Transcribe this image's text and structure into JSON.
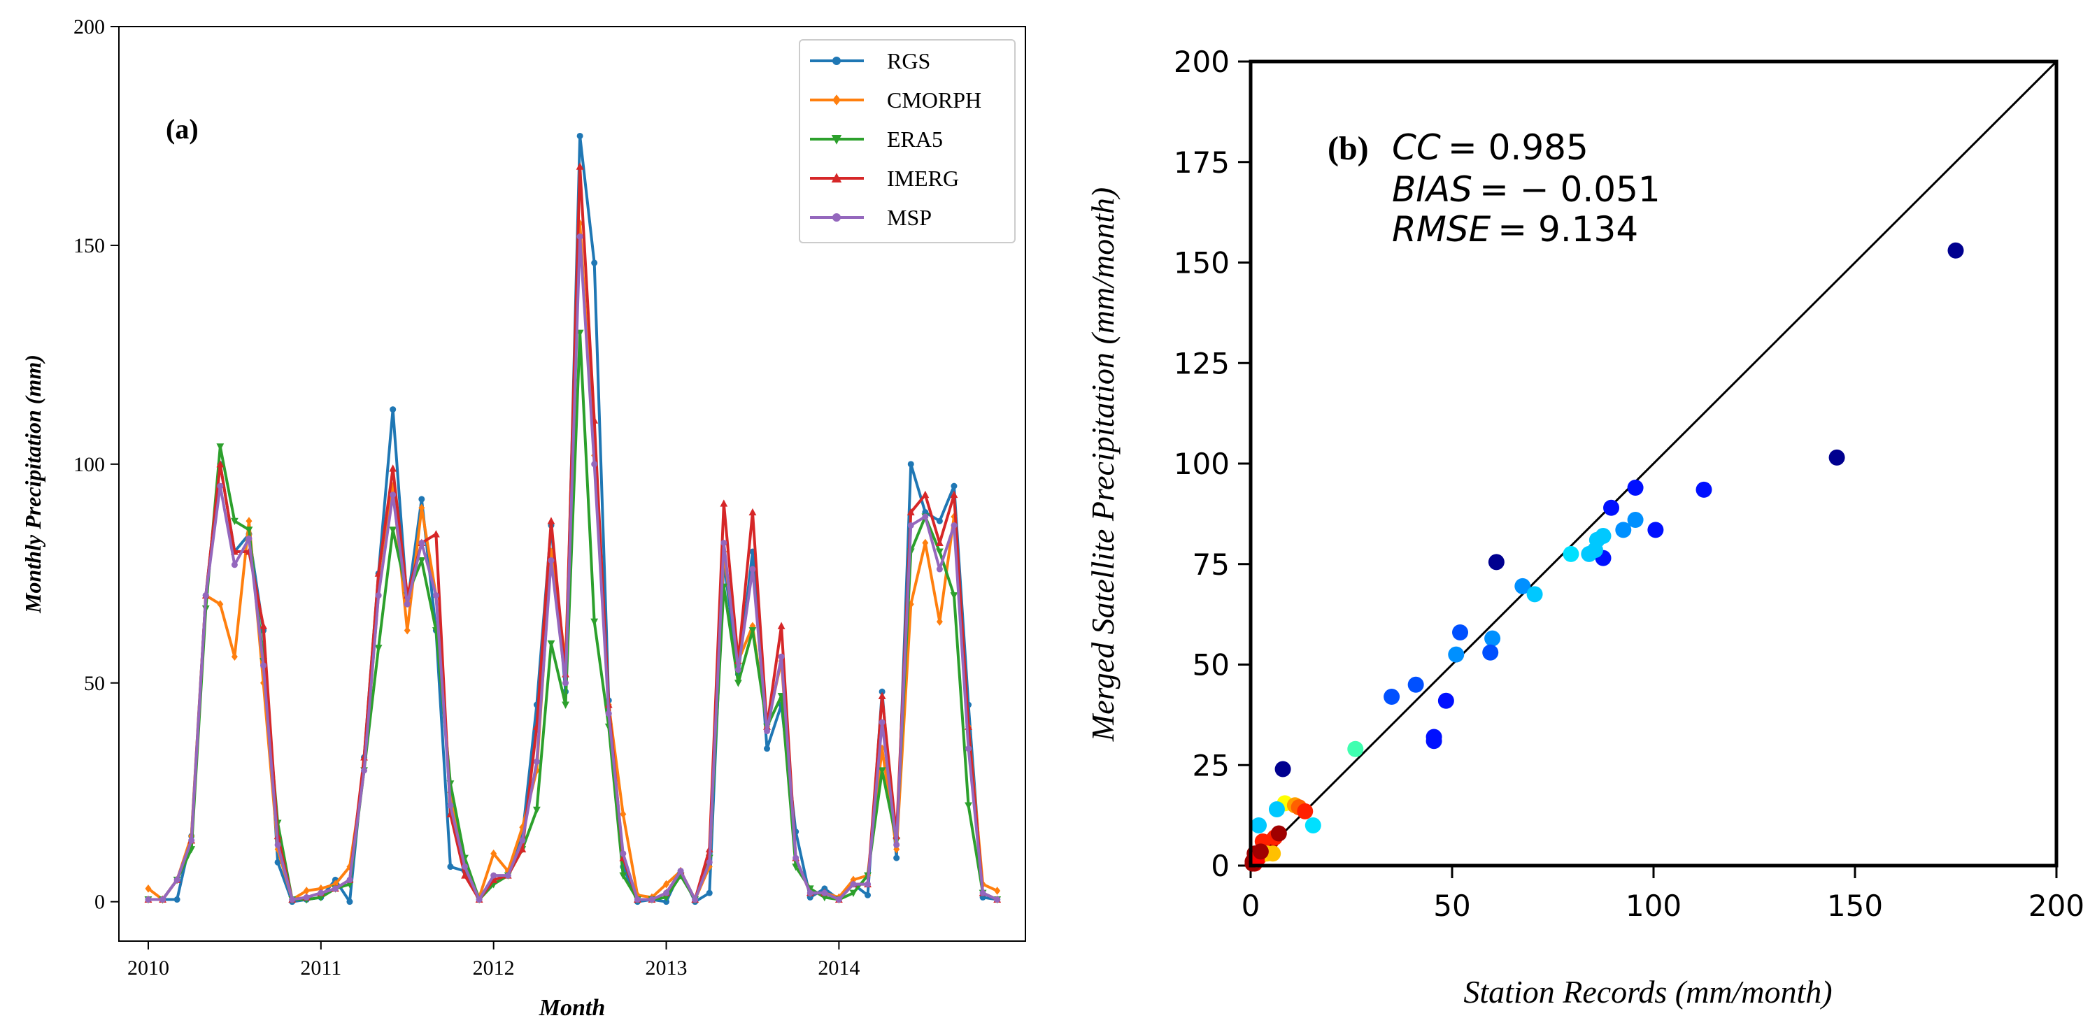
{
  "chart_data": [
    {
      "id": "a",
      "type": "line",
      "panel_label": "(a)",
      "xlabel": "Month",
      "ylabel": "Monthly Precipitation (mm)",
      "xlim": [
        2009.83,
        2015.08
      ],
      "ylim": [
        -9,
        200
      ],
      "xticks": [
        2010,
        2011,
        2012,
        2013,
        2014
      ],
      "xtick_labels": [
        "2010",
        "2011",
        "2012",
        "2013",
        "2014"
      ],
      "yticks": [
        0,
        50,
        100,
        150,
        200
      ],
      "ytick_labels": [
        "0",
        "50",
        "100",
        "150",
        "200"
      ],
      "legend_position": "top-right",
      "x_start_year": 2010,
      "series": [
        {
          "name": "RGS",
          "color": "#1f77b4",
          "marker": "circle",
          "values": [
            0.5,
            0.5,
            0.5,
            15,
            70,
            100,
            80,
            84,
            62,
            9,
            0,
            0.5,
            1,
            5,
            0,
            33,
            75,
            112.5,
            68,
            92,
            62,
            8,
            7,
            0.5,
            5,
            6,
            15,
            45,
            86,
            48,
            175,
            146,
            46,
            8,
            0,
            0.5,
            0,
            7,
            0,
            2,
            78,
            52,
            80,
            35,
            45,
            16,
            1,
            3,
            0.5,
            4,
            1.5,
            48,
            10,
            100,
            89,
            87,
            95,
            45,
            1,
            0.5
          ]
        },
        {
          "name": "CMORPH",
          "color": "#ff7f0e",
          "marker": "diamond",
          "values": [
            3,
            0.5,
            5,
            15,
            70,
            68,
            56,
            87,
            50,
            12,
            0.5,
            2.5,
            3,
            4,
            8,
            30,
            70,
            95,
            62,
            90,
            70,
            25,
            8,
            1,
            11,
            7,
            17,
            30,
            80,
            55,
            155,
            102,
            45,
            20,
            1.5,
            1,
            4,
            7,
            0.5,
            8,
            80,
            55,
            63,
            40,
            55,
            10,
            2,
            2,
            1,
            5,
            6,
            35,
            12,
            68,
            82,
            64,
            88,
            40,
            4,
            2.5
          ]
        },
        {
          "name": "ERA5",
          "color": "#2ca02c",
          "marker": "triangle-down",
          "values": [
            0.5,
            0.5,
            5,
            12,
            67,
            104,
            87,
            85,
            55,
            18,
            0.5,
            0.5,
            1,
            3,
            4,
            30,
            58,
            85,
            70,
            78,
            62,
            27,
            10,
            0.5,
            4,
            6,
            12,
            21,
            59,
            45,
            130,
            64,
            40,
            6,
            0.5,
            0.5,
            1,
            6,
            0.5,
            10,
            72,
            50,
            62,
            40,
            47,
            8,
            3,
            1,
            0.5,
            2,
            6,
            30,
            14,
            80,
            88,
            80,
            70,
            22,
            2,
            0.5
          ]
        },
        {
          "name": "IMERG",
          "color": "#d62728",
          "marker": "triangle-up",
          "values": [
            0.5,
            0.5,
            5,
            14,
            70,
            100,
            80,
            80,
            63,
            15,
            0.5,
            1,
            2,
            3,
            5,
            33,
            75,
            99,
            70,
            82,
            84,
            20,
            6,
            0.5,
            5,
            6,
            12,
            40,
            87,
            52,
            168,
            110,
            45,
            10,
            0.5,
            0.5,
            2,
            7,
            0.5,
            12,
            91,
            55,
            89,
            40,
            63,
            10,
            2,
            2,
            0.5,
            4,
            4,
            47,
            15,
            89,
            93,
            82,
            93,
            40,
            2,
            0.5
          ]
        },
        {
          "name": "MSP",
          "color": "#9467bd",
          "marker": "circle",
          "values": [
            0.5,
            0.5,
            5,
            14,
            70,
            95,
            77,
            83,
            54,
            13,
            0.5,
            1,
            2,
            3,
            5,
            30,
            70,
            93,
            68,
            82,
            70,
            22,
            8,
            0.5,
            6,
            6,
            14,
            32,
            78,
            50,
            152,
            100,
            43,
            11,
            0.5,
            0.5,
            2,
            7,
            0.5,
            9,
            82,
            53,
            76,
            39,
            56,
            10,
            2,
            2,
            0.5,
            4,
            4,
            41,
            13,
            86,
            88,
            76,
            86,
            35,
            2,
            0.5
          ]
        }
      ]
    },
    {
      "id": "b",
      "type": "scatter",
      "panel_label": "(b)",
      "xlabel": "Station Records (mm/month)",
      "ylabel": "Merged Satellite Precipitation (mm/month)",
      "xlim": [
        0,
        200
      ],
      "ylim": [
        0,
        200
      ],
      "xticks": [
        0,
        50,
        100,
        150,
        200
      ],
      "xtick_labels": [
        "0",
        "50",
        "100",
        "150",
        "200"
      ],
      "yticks": [
        0,
        25,
        50,
        75,
        100,
        125,
        150,
        175,
        200
      ],
      "ytick_labels": [
        "0",
        "25",
        "50",
        "75",
        "100",
        "125",
        "150",
        "175",
        "200"
      ],
      "reference_line": "1:1",
      "stats_lines": [
        {
          "var": "CC",
          "rest": "= 0.985"
        },
        {
          "var": "BIAS",
          "rest": "= − 0.051"
        },
        {
          "var": "RMSE",
          "rest": "= 9.134"
        }
      ],
      "points": [
        {
          "x": 175,
          "y": 153,
          "color": "#00008f"
        },
        {
          "x": 145.5,
          "y": 101.5,
          "color": "#00008f"
        },
        {
          "x": 112.5,
          "y": 93.5,
          "color": "#0010ff"
        },
        {
          "x": 100.5,
          "y": 83.5,
          "color": "#0010ff"
        },
        {
          "x": 95.5,
          "y": 94,
          "color": "#0010ff"
        },
        {
          "x": 89.5,
          "y": 89,
          "color": "#0010ff"
        },
        {
          "x": 87.5,
          "y": 76.5,
          "color": "#0010ff"
        },
        {
          "x": 61,
          "y": 75.5,
          "color": "#00008f"
        },
        {
          "x": 95.5,
          "y": 86,
          "color": "#0090ff"
        },
        {
          "x": 92.5,
          "y": 83.5,
          "color": "#0090ff"
        },
        {
          "x": 87.5,
          "y": 82,
          "color": "#00c8ff"
        },
        {
          "x": 86,
          "y": 81,
          "color": "#00c8ff"
        },
        {
          "x": 85.5,
          "y": 78.5,
          "color": "#00c8ff"
        },
        {
          "x": 84,
          "y": 77.5,
          "color": "#00c8ff"
        },
        {
          "x": 79.5,
          "y": 77.5,
          "color": "#00e0ff"
        },
        {
          "x": 67.5,
          "y": 69.5,
          "color": "#0090ff"
        },
        {
          "x": 70.5,
          "y": 67.5,
          "color": "#00c8ff"
        },
        {
          "x": 52,
          "y": 58,
          "color": "#0050ff"
        },
        {
          "x": 60,
          "y": 56.5,
          "color": "#0090ff"
        },
        {
          "x": 51,
          "y": 52.5,
          "color": "#0090ff"
        },
        {
          "x": 59.5,
          "y": 53,
          "color": "#0050ff"
        },
        {
          "x": 41,
          "y": 45,
          "color": "#0050ff"
        },
        {
          "x": 35,
          "y": 42,
          "color": "#0050ff"
        },
        {
          "x": 48.5,
          "y": 41,
          "color": "#0010ff"
        },
        {
          "x": 45.5,
          "y": 32,
          "color": "#0010ff"
        },
        {
          "x": 45.5,
          "y": 31,
          "color": "#0010ff"
        },
        {
          "x": 26,
          "y": 29,
          "color": "#40ffb0"
        },
        {
          "x": 8,
          "y": 24,
          "color": "#00008f"
        },
        {
          "x": 8.5,
          "y": 15.5,
          "color": "#ffff00"
        },
        {
          "x": 6.5,
          "y": 14,
          "color": "#00c8ff"
        },
        {
          "x": 11,
          "y": 15,
          "color": "#ffa000"
        },
        {
          "x": 12,
          "y": 14.5,
          "color": "#ff6000"
        },
        {
          "x": 13.5,
          "y": 13.5,
          "color": "#ff2000"
        },
        {
          "x": 15.5,
          "y": 10,
          "color": "#00e0ff"
        },
        {
          "x": 2,
          "y": 10,
          "color": "#00c8ff"
        },
        {
          "x": 4,
          "y": 5,
          "color": "#a00000"
        },
        {
          "x": 5,
          "y": 6,
          "color": "#a00000"
        },
        {
          "x": 6,
          "y": 7,
          "color": "#ff2000"
        },
        {
          "x": 7,
          "y": 8,
          "color": "#a00000"
        },
        {
          "x": 3,
          "y": 4,
          "color": "#ff6000"
        },
        {
          "x": 1,
          "y": 3,
          "color": "#a00000"
        },
        {
          "x": 2,
          "y": 2,
          "color": "#ff2000"
        },
        {
          "x": 0.5,
          "y": 1,
          "color": "#a00000"
        },
        {
          "x": 1,
          "y": 0.5,
          "color": "#d00000"
        },
        {
          "x": 3,
          "y": 6,
          "color": "#ff2000"
        },
        {
          "x": 4,
          "y": 3,
          "color": "#ffd000"
        },
        {
          "x": 5.5,
          "y": 3,
          "color": "#ffc000"
        },
        {
          "x": 0.5,
          "y": 0.5,
          "color": "#a00000"
        },
        {
          "x": 1.5,
          "y": 1.5,
          "color": "#ff0000"
        },
        {
          "x": 2.5,
          "y": 3.5,
          "color": "#a00000"
        }
      ]
    }
  ]
}
